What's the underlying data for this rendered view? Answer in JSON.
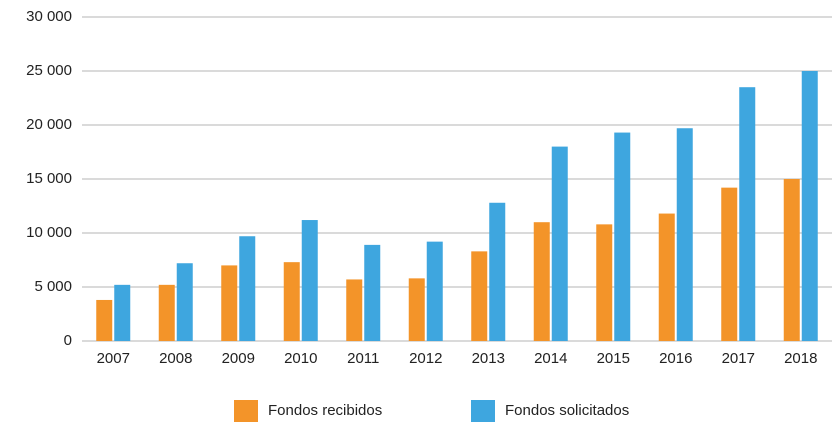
{
  "chart_data": {
    "type": "bar",
    "categories": [
      "2007",
      "2008",
      "2009",
      "2010",
      "2011",
      "2012",
      "2013",
      "2014",
      "2015",
      "2016",
      "2017",
      "2018"
    ],
    "series": [
      {
        "name": "Fondos recibidos",
        "color": "#f39429",
        "values": [
          3800,
          5200,
          7000,
          7300,
          5700,
          5800,
          8300,
          11000,
          10800,
          11800,
          14200,
          15000
        ]
      },
      {
        "name": "Fondos solicitados",
        "color": "#3ea6df",
        "values": [
          5200,
          7200,
          9700,
          11200,
          8900,
          9200,
          12800,
          18000,
          19300,
          19700,
          23500,
          25000
        ]
      }
    ],
    "ylim": [
      0,
      30000
    ],
    "yticks": [
      0,
      {
        "value": 5000,
        "label": "5 000"
      },
      {
        "value": 10000,
        "label": "10 000"
      },
      {
        "value": 15000,
        "label": "15 000"
      },
      {
        "value": 20000,
        "label": "20 000"
      },
      {
        "value": 25000,
        "label": "25 000"
      },
      {
        "value": 30000,
        "label": "30 000"
      }
    ],
    "grid": true,
    "legend": "bottom"
  }
}
